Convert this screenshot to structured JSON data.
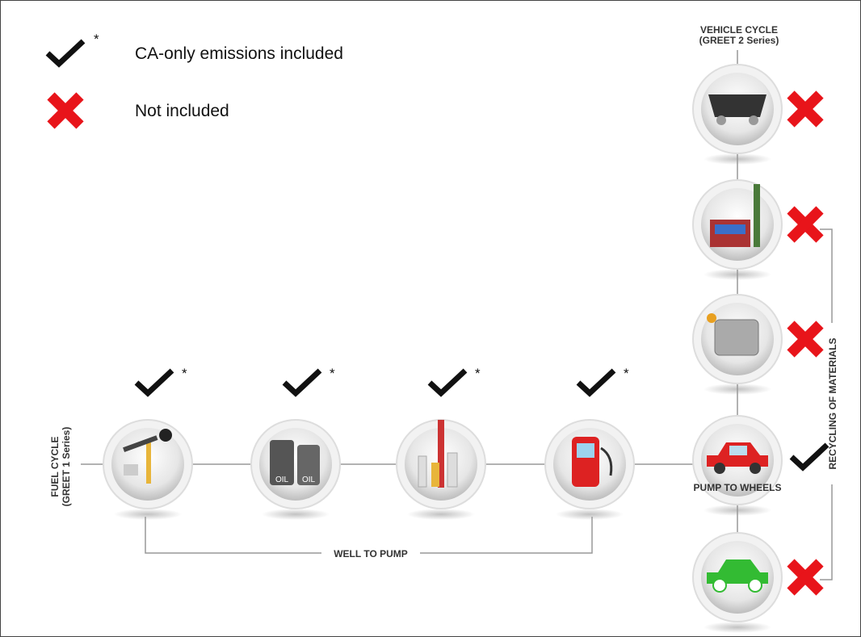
{
  "legend": [
    {
      "symbol": "check",
      "note": "*",
      "label": "CA-only emissions included"
    },
    {
      "symbol": "cross",
      "label": "Not included"
    }
  ],
  "fuel_cycle": {
    "label": "FUEL CYCLE",
    "sublabel": "(GREET 1 Series)",
    "bracket_label": "WELL TO PUMP",
    "stages": [
      {
        "symbol": "check",
        "note": "*"
      },
      {
        "symbol": "check",
        "note": "*"
      },
      {
        "symbol": "check",
        "note": "*"
      },
      {
        "symbol": "check",
        "note": "*"
      }
    ]
  },
  "vehicle_cycle": {
    "label": "VEHICLE CYCLE",
    "sublabel": "(GREET 2 Series)",
    "bracket_label": "RECYCLING OF MATERIALS",
    "stage_label": "PUMP TO WHEELS",
    "stages": [
      {
        "symbol": "cross"
      },
      {
        "symbol": "cross"
      },
      {
        "symbol": "cross"
      },
      {
        "symbol": "check"
      },
      {
        "symbol": "cross"
      }
    ]
  }
}
